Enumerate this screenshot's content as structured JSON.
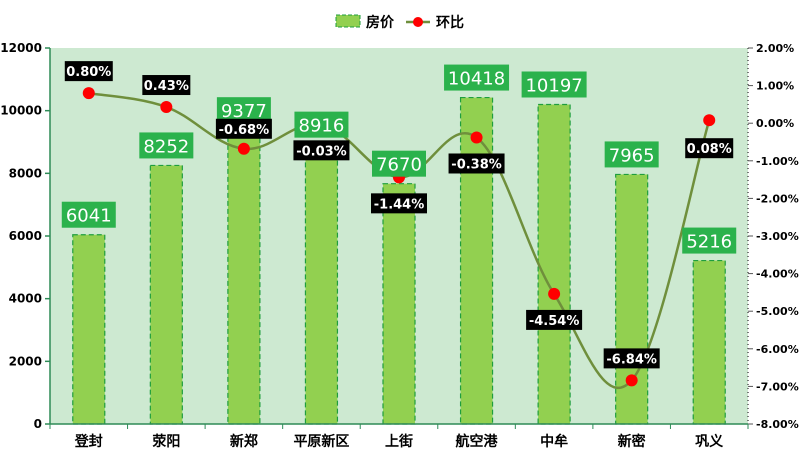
{
  "chart_data": {
    "type": "bar",
    "categories": [
      "登封",
      "荥阳",
      "新郑",
      "平原新区",
      "上街",
      "航空港",
      "中牟",
      "新密",
      "巩义"
    ],
    "series": [
      {
        "name": "房价",
        "type": "bar",
        "axis": "left",
        "values": [
          6041,
          8252,
          9377,
          8916,
          7670,
          10418,
          10197,
          7965,
          5216
        ],
        "labels": [
          "6041",
          "8252",
          "9377",
          "8916",
          "7670",
          "10418",
          "10197",
          "7965",
          "5216"
        ]
      },
      {
        "name": "环比",
        "type": "line",
        "axis": "right",
        "values": [
          0.8,
          0.43,
          -0.68,
          -0.03,
          -1.44,
          -0.38,
          -4.54,
          -6.84,
          0.08
        ],
        "labels": [
          "0.80%",
          "0.43%",
          "-0.68%",
          "-0.03%",
          "-1.44%",
          "-0.38%",
          "-4.54%",
          "-6.84%",
          "0.08%"
        ]
      }
    ],
    "y_left": {
      "min": 0,
      "max": 12000,
      "ticks": [
        "0",
        "2000",
        "4000",
        "6000",
        "8000",
        "10000",
        "12000"
      ]
    },
    "y_right": {
      "min": -8,
      "max": 2,
      "ticks": [
        "-8.00%",
        "-7.00%",
        "-6.00%",
        "-5.00%",
        "-4.00%",
        "-3.00%",
        "-2.00%",
        "-1.00%",
        "0.00%",
        "1.00%",
        "2.00%"
      ]
    },
    "legend": {
      "position": "top",
      "items": [
        "房价",
        "环比"
      ]
    },
    "grid": false,
    "colors": {
      "plot_bg": "#cde9d1",
      "bar": "#92d050",
      "bar_border": "#1f9e3e",
      "bar_label_bg": "#2bb24c",
      "line": "#6f8f3c",
      "marker": "#ff0000",
      "mom_label_bg": "#000000",
      "axis": "#2e8b57"
    }
  }
}
